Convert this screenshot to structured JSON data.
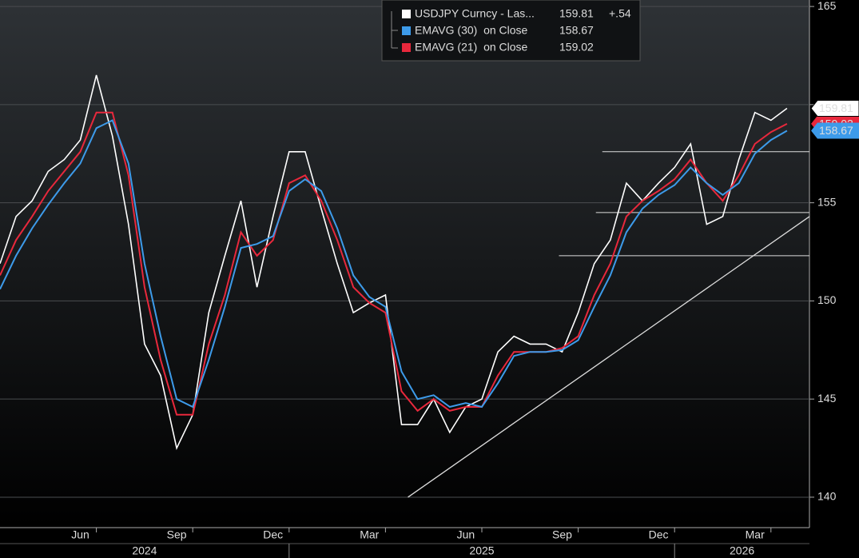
{
  "chart_data": {
    "type": "line",
    "categories": [
      null,
      null,
      null,
      null,
      null,
      "Jun",
      null,
      null,
      null,
      null,
      null,
      "Sep",
      null,
      null,
      null,
      null,
      null,
      "Dec",
      null,
      null,
      null,
      null,
      null,
      "Mar",
      null,
      null,
      null,
      null,
      null,
      "Jun",
      null,
      null,
      null,
      null,
      null,
      "Sep",
      null,
      null,
      null,
      null,
      null,
      "Dec",
      null,
      null,
      null,
      null,
      null,
      "Mar",
      null,
      null
    ],
    "year_groups": [
      {
        "label": "2024",
        "start": 0
      },
      {
        "label": "2025",
        "start": 18
      },
      {
        "label": "2026",
        "start": 42
      }
    ],
    "series": [
      {
        "name": "USDJPY Curncy - Las...",
        "color": "#ffffff",
        "change": {
          "value": 0.54,
          "label": "+.54"
        },
        "values": [
          151.9,
          154.3,
          155.1,
          156.6,
          157.2,
          158.2,
          161.5,
          158.4,
          153.9,
          147.8,
          146.2,
          142.5,
          144.2,
          149.4,
          152.3,
          155.1,
          150.7,
          154.3,
          157.6,
          157.6,
          154.7,
          151.9,
          149.4,
          149.9,
          150.3,
          143.7,
          143.7,
          145.0,
          143.3,
          144.6,
          145.0,
          147.4,
          148.2,
          147.8,
          147.8,
          147.4,
          149.4,
          151.9,
          153.1,
          156.0,
          155.1,
          156.0,
          156.8,
          158.0,
          153.9,
          154.3,
          157.2,
          159.6,
          159.2,
          159.81
        ]
      },
      {
        "name": "EMAVG (30)  on Close",
        "color": "#3d9bea",
        "values": [
          150.6,
          152.3,
          153.7,
          154.9,
          156.0,
          157.0,
          158.8,
          159.2,
          157.0,
          151.9,
          148.2,
          145.0,
          144.6,
          147.0,
          149.7,
          152.7,
          152.9,
          153.3,
          155.6,
          156.2,
          155.6,
          153.7,
          151.3,
          150.2,
          149.7,
          146.4,
          145.0,
          145.2,
          144.6,
          144.8,
          144.6,
          145.8,
          147.2,
          147.4,
          147.4,
          147.5,
          148.0,
          149.7,
          151.3,
          153.5,
          154.7,
          155.4,
          155.9,
          156.8,
          156.0,
          155.4,
          156.0,
          157.5,
          158.2,
          158.67
        ]
      },
      {
        "name": "EMAVG (21)  on Close",
        "color": "#e8283c",
        "values": [
          151.3,
          153.1,
          154.3,
          155.6,
          156.6,
          157.6,
          159.6,
          159.6,
          156.4,
          150.7,
          147.0,
          144.2,
          144.2,
          147.8,
          150.3,
          153.5,
          152.3,
          153.1,
          156.0,
          156.4,
          155.1,
          153.1,
          150.7,
          149.9,
          149.4,
          145.4,
          144.4,
          145.0,
          144.4,
          144.6,
          144.6,
          146.2,
          147.4,
          147.4,
          147.4,
          147.6,
          148.2,
          150.3,
          151.9,
          154.3,
          155.1,
          155.6,
          156.2,
          157.2,
          156.0,
          155.1,
          156.4,
          158.0,
          158.6,
          159.02
        ]
      }
    ],
    "ylim": [
      138.45,
      165.33
    ],
    "yticks": [
      140,
      145,
      150,
      155,
      160,
      165
    ],
    "grid": true,
    "support_lines": [
      {
        "level": 157.6,
        "start_index": 37.5
      },
      {
        "level": 154.5,
        "start_index": 37.1
      },
      {
        "level": 152.3,
        "start_index": 34.8
      }
    ],
    "trendline": {
      "x": [
        25.4,
        50.4
      ],
      "y": [
        140.0,
        154.3
      ]
    }
  }
}
